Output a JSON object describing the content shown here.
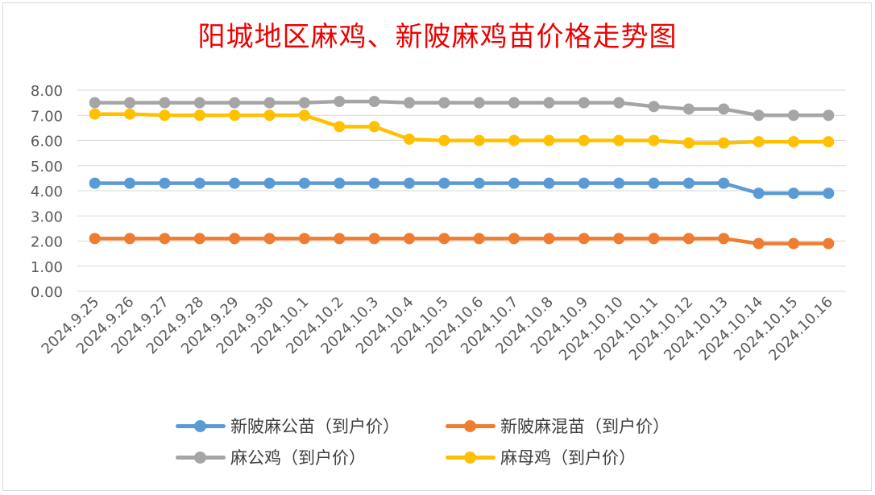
{
  "title": "阳城地区麻鸡、新陂麻鸡苗价格走势图",
  "chart_data": {
    "type": "line",
    "title": "阳城地区麻鸡、新陂麻鸡苗价格走势图",
    "xlabel": "",
    "ylabel": "",
    "ylim": [
      0,
      8
    ],
    "yticks": [
      "0.00",
      "1.00",
      "2.00",
      "3.00",
      "4.00",
      "5.00",
      "6.00",
      "7.00",
      "8.00"
    ],
    "grid": true,
    "legend_position": "bottom",
    "categories": [
      "2024.9.25",
      "2024.9.26",
      "2024.9.27",
      "2024.9.28",
      "2024.9.29",
      "2024.9.30",
      "2024.10.1",
      "2024.10.2",
      "2024.10.3",
      "2024.10.4",
      "2024.10.5",
      "2024.10.6",
      "2024.10.7",
      "2024.10.8",
      "2024.10.9",
      "2024.10.10",
      "2024.10.11",
      "2024.10.12",
      "2024.10.13",
      "2024.10.14",
      "2024.10.15",
      "2024.10.16"
    ],
    "series": [
      {
        "name": "新陂麻公苗（到户价）",
        "color": "#5b9bd5",
        "values": [
          4.3,
          4.3,
          4.3,
          4.3,
          4.3,
          4.3,
          4.3,
          4.3,
          4.3,
          4.3,
          4.3,
          4.3,
          4.3,
          4.3,
          4.3,
          4.3,
          4.3,
          4.3,
          4.3,
          3.9,
          3.9,
          3.9
        ]
      },
      {
        "name": "新陂麻混苗（到户价）",
        "color": "#ed7d31",
        "values": [
          2.1,
          2.1,
          2.1,
          2.1,
          2.1,
          2.1,
          2.1,
          2.1,
          2.1,
          2.1,
          2.1,
          2.1,
          2.1,
          2.1,
          2.1,
          2.1,
          2.1,
          2.1,
          2.1,
          1.9,
          1.9,
          1.9
        ]
      },
      {
        "name": "麻公鸡（到户价）",
        "color": "#a5a5a5",
        "values": [
          7.5,
          7.5,
          7.5,
          7.5,
          7.5,
          7.5,
          7.5,
          7.55,
          7.55,
          7.5,
          7.5,
          7.5,
          7.5,
          7.5,
          7.5,
          7.5,
          7.35,
          7.25,
          7.25,
          7.0,
          7.0,
          7.0
        ]
      },
      {
        "name": "麻母鸡（到户价）",
        "color": "#ffc000",
        "values": [
          7.05,
          7.05,
          7.0,
          7.0,
          7.0,
          7.0,
          7.0,
          6.55,
          6.55,
          6.05,
          6.0,
          6.0,
          6.0,
          6.0,
          6.0,
          6.0,
          6.0,
          5.9,
          5.9,
          5.95,
          5.95,
          5.95
        ]
      }
    ]
  }
}
